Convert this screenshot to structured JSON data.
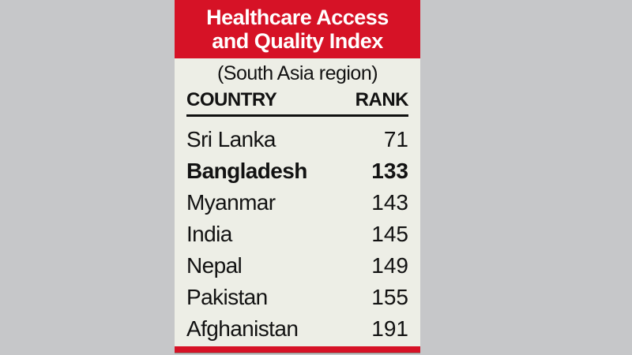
{
  "header": {
    "line1": "Healthcare Access",
    "line2": "and Quality Index"
  },
  "subtitle": "(South Asia region)",
  "table": {
    "col_country": "COUNTRY",
    "col_rank": "RANK",
    "rows": [
      {
        "country": "Sri Lanka",
        "rank": "71"
      },
      {
        "country": "Bangladesh",
        "rank": "133"
      },
      {
        "country": "Myanmar",
        "rank": "143"
      },
      {
        "country": "India",
        "rank": "145"
      },
      {
        "country": "Nepal",
        "rank": "149"
      },
      {
        "country": "Pakistan",
        "rank": "155"
      },
      {
        "country": "Afghanistan",
        "rank": "191"
      }
    ],
    "highlighted_country": "Bangladesh"
  },
  "colors": {
    "background": "#c6c7c9",
    "card": "#edeee6",
    "accent_red": "#d61226",
    "text": "#121212",
    "banner_text": "#ffffff"
  },
  "chart_data": {
    "type": "table",
    "title": "Healthcare Access and Quality Index",
    "subtitle": "(South Asia region)",
    "columns": [
      "COUNTRY",
      "RANK"
    ],
    "categories": [
      "Sri Lanka",
      "Bangladesh",
      "Myanmar",
      "India",
      "Nepal",
      "Pakistan",
      "Afghanistan"
    ],
    "values": [
      71,
      133,
      143,
      145,
      149,
      155,
      191
    ],
    "highlighted_row": "Bangladesh",
    "legend": false,
    "grid": false
  }
}
